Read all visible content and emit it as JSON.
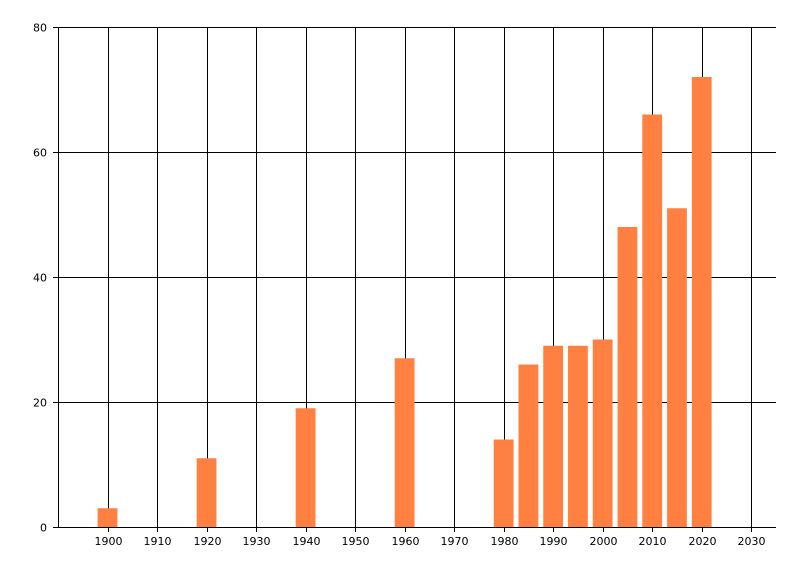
{
  "chart_data": {
    "type": "bar",
    "title": "",
    "xlabel": "",
    "ylabel": "",
    "x": [
      1900,
      1920,
      1940,
      1960,
      1980,
      1985,
      1990,
      1995,
      2000,
      2005,
      2010,
      2015,
      2020
    ],
    "values": [
      3,
      11,
      19,
      27,
      14,
      26,
      29,
      29,
      30,
      48,
      66,
      51,
      72
    ],
    "xlim": [
      1890,
      2035
    ],
    "ylim": [
      0,
      80
    ],
    "x_ticks": [
      1900,
      1910,
      1920,
      1930,
      1940,
      1950,
      1960,
      1970,
      1980,
      1990,
      2000,
      2010,
      2020,
      2030
    ],
    "y_ticks": [
      0,
      20,
      40,
      60,
      80
    ],
    "grid": true,
    "legend": "none",
    "bar_color": "#FF8040",
    "grid_color": "#000000"
  }
}
